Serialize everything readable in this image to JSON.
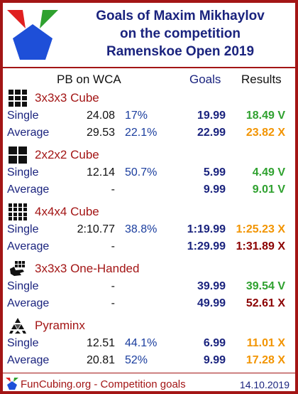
{
  "title": {
    "line1": "Goals of Maxim Mikhaylov",
    "line2": "on the competition",
    "line3": "Ramenskoe Open 2019"
  },
  "columns": {
    "pb": "PB on WCA",
    "goals": "Goals",
    "results": "Results"
  },
  "events": [
    {
      "name": "3x3x3 Cube",
      "icon": "cube-3x3-icon",
      "rows": [
        {
          "label": "Single",
          "pb": "24.08",
          "pct": "17%",
          "goal": "19.99",
          "result": "18.49 V",
          "result_color": "green"
        },
        {
          "label": "Average",
          "pb": "29.53",
          "pct": "22.1%",
          "goal": "22.99",
          "result": "23.82 X",
          "result_color": "orange"
        }
      ]
    },
    {
      "name": "2x2x2 Cube",
      "icon": "cube-2x2-icon",
      "rows": [
        {
          "label": "Single",
          "pb": "12.14",
          "pct": "50.7%",
          "goal": "5.99",
          "result": "4.49 V",
          "result_color": "green"
        },
        {
          "label": "Average",
          "pb": "-",
          "pct": "",
          "goal": "9.99",
          "result": "9.01 V",
          "result_color": "green"
        }
      ]
    },
    {
      "name": "4x4x4 Cube",
      "icon": "cube-4x4-icon",
      "rows": [
        {
          "label": "Single",
          "pb": "2:10.77",
          "pct": "38.8%",
          "goal": "1:19.99",
          "result": "1:25.23 X",
          "result_color": "orange"
        },
        {
          "label": "Average",
          "pb": "-",
          "pct": "",
          "goal": "1:29.99",
          "result": "1:31.89 X",
          "result_color": "darkred"
        }
      ]
    },
    {
      "name": "3x3x3 One-Handed",
      "icon": "one-handed-icon",
      "rows": [
        {
          "label": "Single",
          "pb": "-",
          "pct": "",
          "goal": "39.99",
          "result": "39.54 V",
          "result_color": "green"
        },
        {
          "label": "Average",
          "pb": "-",
          "pct": "",
          "goal": "49.99",
          "result": "52.61 X",
          "result_color": "darkred"
        }
      ]
    },
    {
      "name": "Pyraminx",
      "icon": "pyraminx-icon",
      "rows": [
        {
          "label": "Single",
          "pb": "12.51",
          "pct": "44.1%",
          "goal": "6.99",
          "result": "11.01 X",
          "result_color": "orange"
        },
        {
          "label": "Average",
          "pb": "20.81",
          "pct": "52%",
          "goal": "9.99",
          "result": "17.28 X",
          "result_color": "orange"
        }
      ]
    }
  ],
  "footer": {
    "site": "FunCubing.org - Competition goals",
    "date": "14.10.2019"
  },
  "colors": {
    "border": "#a31515",
    "title": "#1a237e",
    "green": "#2fa12f",
    "orange": "#f29400",
    "darkred": "#8b0000",
    "logo_red": "#e02020",
    "logo_green": "#2fa12f",
    "logo_blue": "#1e4fd8"
  }
}
